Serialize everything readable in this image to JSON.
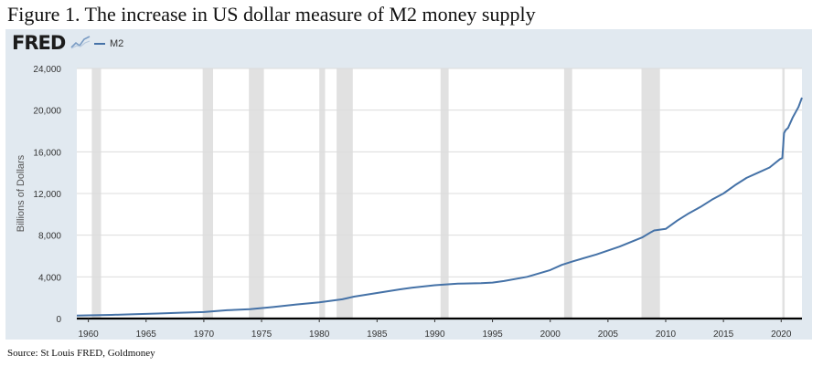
{
  "figure": {
    "title": "Figure 1. The increase in US dollar measure of M2 money supply",
    "source": "Source: St Louis FRED, Goldmoney"
  },
  "logo": {
    "text": "FRED",
    "icon": "fred-chart-mark-icon"
  },
  "colors": {
    "series": "#4572a7",
    "panel": "#e1e9f0",
    "recession": "#e1e1e1",
    "grid": "#dcdcdc",
    "baseline": "#000000"
  },
  "chart_data": {
    "type": "line",
    "title": "",
    "xlabel": "",
    "ylabel": "Billions of Dollars",
    "xlim": [
      1959,
      2021.8
    ],
    "ylim": [
      0,
      24000
    ],
    "yticks": [
      0,
      4000,
      8000,
      12000,
      16000,
      20000,
      24000
    ],
    "ytick_labels": [
      "0",
      "4,000",
      "8,000",
      "12,000",
      "16,000",
      "20,000",
      "24,000"
    ],
    "xticks": [
      1960,
      1965,
      1970,
      1975,
      1980,
      1985,
      1990,
      1995,
      2000,
      2005,
      2010,
      2015,
      2020
    ],
    "xtick_labels": [
      "1960",
      "1965",
      "1970",
      "1975",
      "1980",
      "1985",
      "1990",
      "1995",
      "2000",
      "2005",
      "2010",
      "2015",
      "2020"
    ],
    "grid": true,
    "legend": "top-left",
    "recessions": [
      [
        1960.3,
        1961.1
      ],
      [
        1969.9,
        1970.8
      ],
      [
        1973.9,
        1975.2
      ],
      [
        1980.0,
        1980.5
      ],
      [
        1981.5,
        1982.9
      ],
      [
        1990.5,
        1991.2
      ],
      [
        2001.2,
        2001.9
      ],
      [
        2007.9,
        2009.5
      ],
      [
        2020.1,
        2020.3
      ]
    ],
    "series": [
      {
        "name": "M2",
        "x": [
          1959,
          1960,
          1962,
          1964,
          1966,
          1968,
          1970,
          1972,
          1974,
          1976,
          1978,
          1980,
          1982,
          1983,
          1985,
          1987,
          1988,
          1990,
          1992,
          1994,
          1995,
          1996,
          1998,
          2000,
          2001,
          2002,
          2004,
          2006,
          2008,
          2008.75,
          2009,
          2010,
          2011,
          2012,
          2013,
          2014,
          2015,
          2016,
          2017,
          2018,
          2019,
          2019.9,
          2020.1,
          2020.25,
          2020.4,
          2020.6,
          2021,
          2021.5,
          2021.8
        ],
        "y": [
          290,
          310,
          350,
          420,
          480,
          560,
          620,
          800,
          900,
          1100,
          1350,
          1560,
          1850,
          2100,
          2450,
          2800,
          2950,
          3200,
          3350,
          3400,
          3450,
          3600,
          4000,
          4650,
          5150,
          5500,
          6150,
          6900,
          7800,
          8300,
          8450,
          8600,
          9400,
          10100,
          10700,
          11400,
          12000,
          12800,
          13500,
          14000,
          14500,
          15300,
          15400,
          17800,
          18100,
          18300,
          19300,
          20300,
          21200
        ]
      }
    ]
  }
}
